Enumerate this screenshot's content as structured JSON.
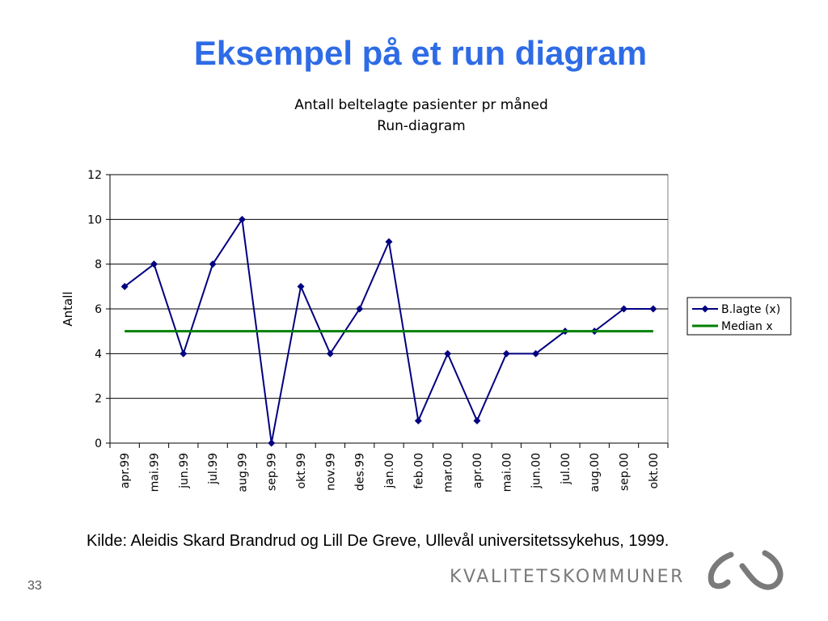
{
  "slide": {
    "title": "Eksempel på et run diagram",
    "caption": "Kilde: Aleidis Skard Brandrud og Lill De Greve, Ullevål universitetssykehus, 1999.",
    "logo_text": "KVALITETSKOMMUNER",
    "page_number": "33"
  },
  "chart_data": {
    "type": "line",
    "title": "Antall beltelagte pasienter pr måned",
    "subtitle": "Run-diagram",
    "ylabel": "Antall",
    "xlabel": "",
    "ylim": [
      0,
      12
    ],
    "yticks": [
      0,
      2,
      4,
      6,
      8,
      10,
      12
    ],
    "grid": true,
    "legend_position": "right",
    "categories": [
      "apr.99",
      "mai.99",
      "jun.99",
      "jul.99",
      "aug.99",
      "sep.99",
      "okt.99",
      "nov.99",
      "des.99",
      "jan.00",
      "feb.00",
      "mar.00",
      "apr.00",
      "mai.00",
      "jun.00",
      "jul.00",
      "aug.00",
      "sep.00",
      "okt.00"
    ],
    "series": [
      {
        "name": "B.lagte (x)",
        "color": "#000080",
        "marker": "diamond",
        "values": [
          7,
          8,
          4,
          8,
          10,
          0,
          7,
          4,
          6,
          9,
          1,
          4,
          1,
          4,
          4,
          5,
          5,
          6,
          6
        ]
      },
      {
        "name": "Median x",
        "color": "#008000",
        "marker": "none",
        "values": [
          5,
          5,
          5,
          5,
          5,
          5,
          5,
          5,
          5,
          5,
          5,
          5,
          5,
          5,
          5,
          5,
          5,
          5,
          5
        ]
      }
    ]
  }
}
